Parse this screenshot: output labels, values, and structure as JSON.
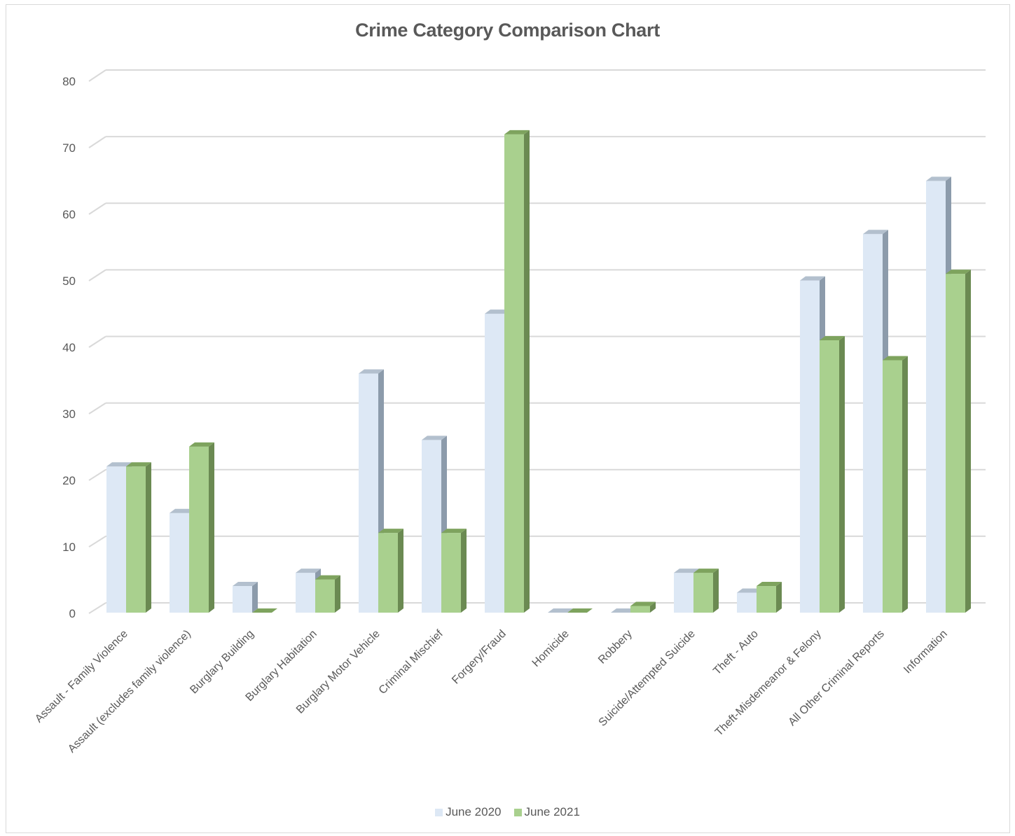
{
  "chart_data": {
    "type": "bar",
    "title": "Crime Category Comparison Chart",
    "categories": [
      "Assault - Family Violence",
      "Assault (excludes family violence)",
      "Burglary Building",
      "Burglary Habitation",
      "Burglary Motor Vehicle",
      "Criminal Mischief",
      "Forgery/Fraud",
      "Homicide",
      "Robbery",
      "Suicide/Attempted Suicide",
      "Theft - Auto",
      "Theft-Misdemeanor &  Felony",
      "All Other Criminal Reports",
      "Information"
    ],
    "series": [
      {
        "name": "June 2020",
        "color": "#dde8f5",
        "values": [
          22,
          15,
          4,
          6,
          36,
          26,
          45,
          0,
          0,
          6,
          3,
          50,
          57,
          65
        ]
      },
      {
        "name": "June 2021",
        "color": "#a9d08e",
        "values": [
          22,
          25,
          0,
          5,
          12,
          12,
          72,
          0,
          1,
          6,
          4,
          41,
          38,
          51
        ]
      }
    ],
    "ylim": [
      0,
      80
    ],
    "yticks": [
      0,
      10,
      20,
      30,
      40,
      50,
      60,
      70,
      80
    ],
    "grid": true,
    "legend_position": "bottom",
    "style": "3d-clustered-column"
  }
}
